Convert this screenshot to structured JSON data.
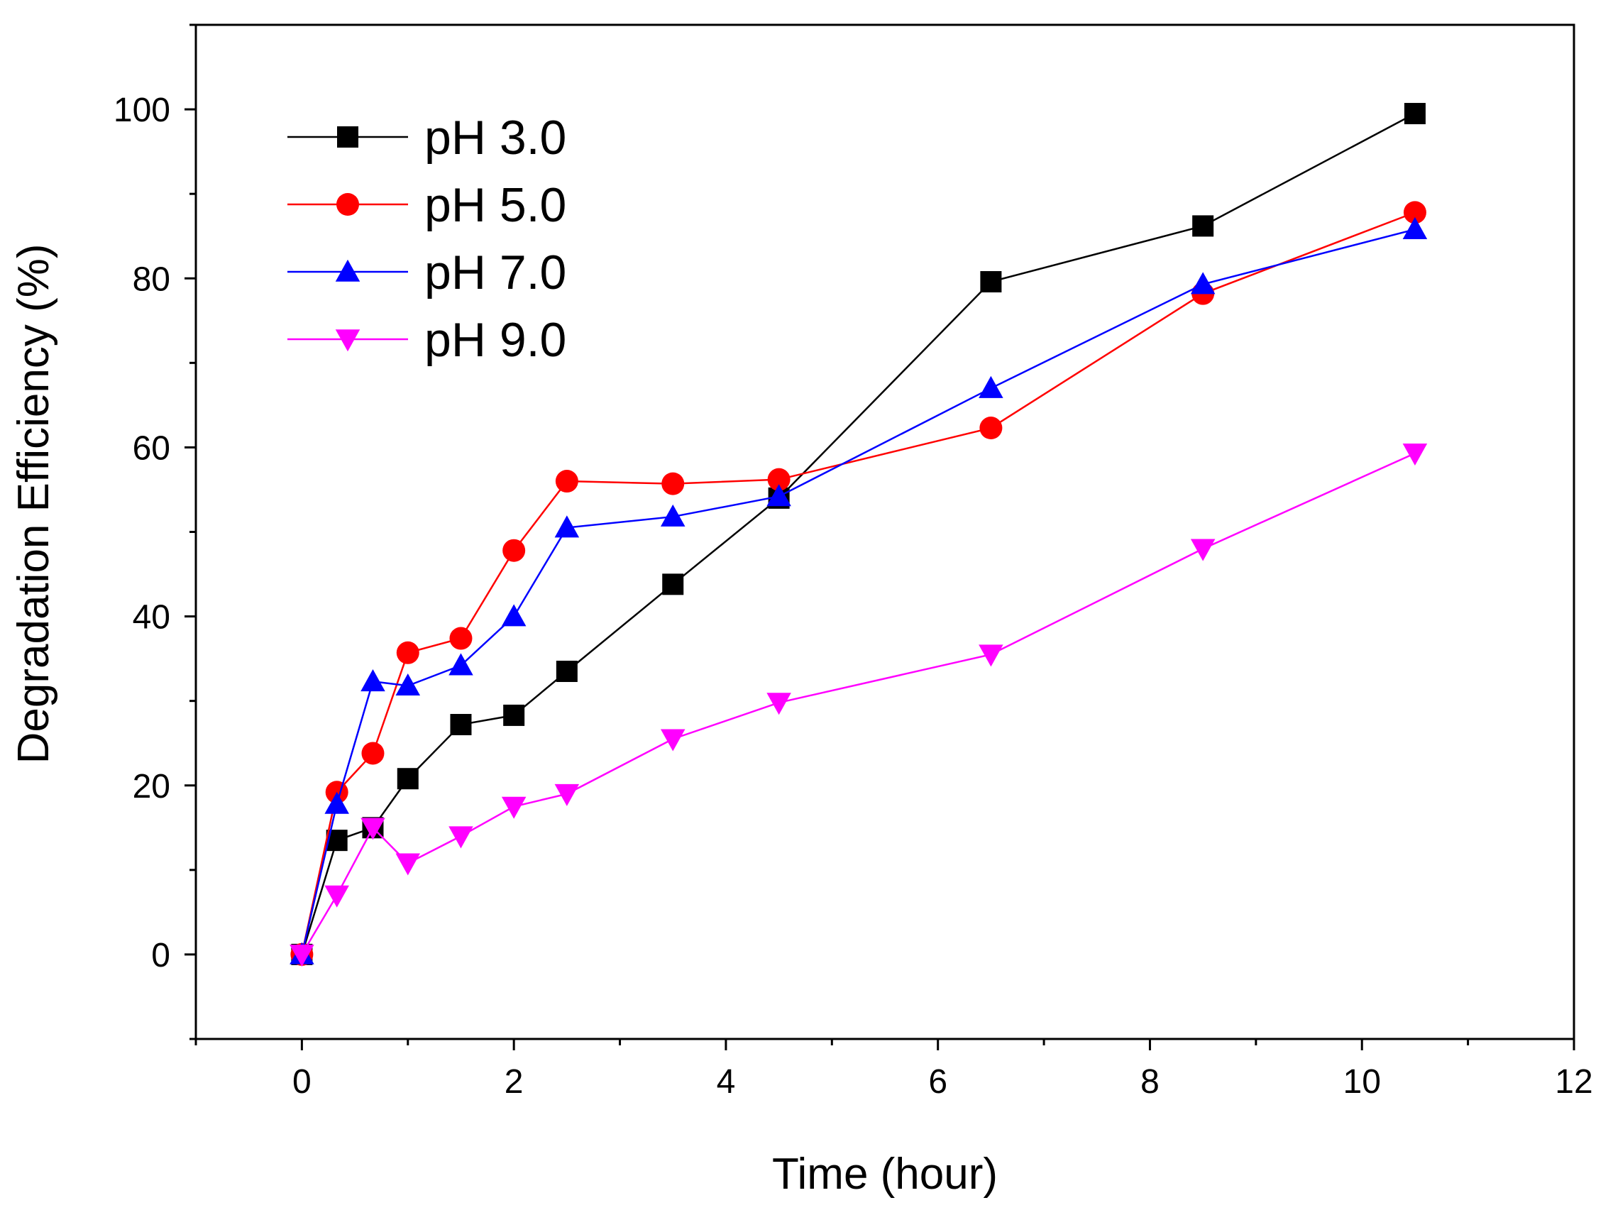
{
  "chart_data": {
    "type": "line",
    "title": "",
    "xlabel": "Time (hour)",
    "ylabel": "Degradation Efficiency (%)",
    "xlim": [
      -1,
      12
    ],
    "ylim": [
      -10,
      110
    ],
    "xticks": [
      0,
      2,
      4,
      6,
      8,
      10,
      12
    ],
    "yticks": [
      0,
      20,
      40,
      60,
      80,
      100
    ],
    "grid": false,
    "legend_position": "top-left",
    "series": [
      {
        "name": "pH 3.0",
        "color": "#000000",
        "marker": "square",
        "x": [
          0,
          0.33,
          0.67,
          1,
          1.5,
          2,
          2.5,
          3.5,
          4.5,
          6.5,
          8.5,
          10.5
        ],
        "y": [
          0,
          13.5,
          15,
          20.8,
          27.2,
          28.3,
          33.5,
          43.8,
          54,
          79.6,
          86.2,
          99.5
        ]
      },
      {
        "name": "pH 5.0",
        "color": "#ff0000",
        "marker": "circle",
        "x": [
          0,
          0.33,
          0.67,
          1,
          1.5,
          2,
          2.5,
          3.5,
          4.5,
          6.5,
          8.5,
          10.5
        ],
        "y": [
          0,
          19.2,
          23.8,
          35.7,
          37.4,
          47.8,
          56,
          55.7,
          56.2,
          62.3,
          78.2,
          87.8
        ]
      },
      {
        "name": "pH 7.0",
        "color": "#0000ff",
        "marker": "triangle-up",
        "x": [
          0,
          0.33,
          0.67,
          1,
          1.5,
          2,
          2.5,
          3.5,
          4.5,
          6.5,
          8.5,
          10.5
        ],
        "y": [
          0,
          17.8,
          32.3,
          31.8,
          34.2,
          40,
          50.5,
          51.8,
          54.2,
          67,
          79.3,
          85.8
        ]
      },
      {
        "name": "pH 9.0",
        "color": "#ff00ff",
        "marker": "triangle-down",
        "x": [
          0,
          0.33,
          0.67,
          1,
          1.5,
          2,
          2.5,
          3.5,
          4.5,
          6.5,
          8.5,
          10.5
        ],
        "y": [
          0,
          7,
          15,
          10.8,
          14,
          17.5,
          19,
          25.5,
          29.8,
          35.5,
          48,
          59.3
        ]
      }
    ]
  }
}
